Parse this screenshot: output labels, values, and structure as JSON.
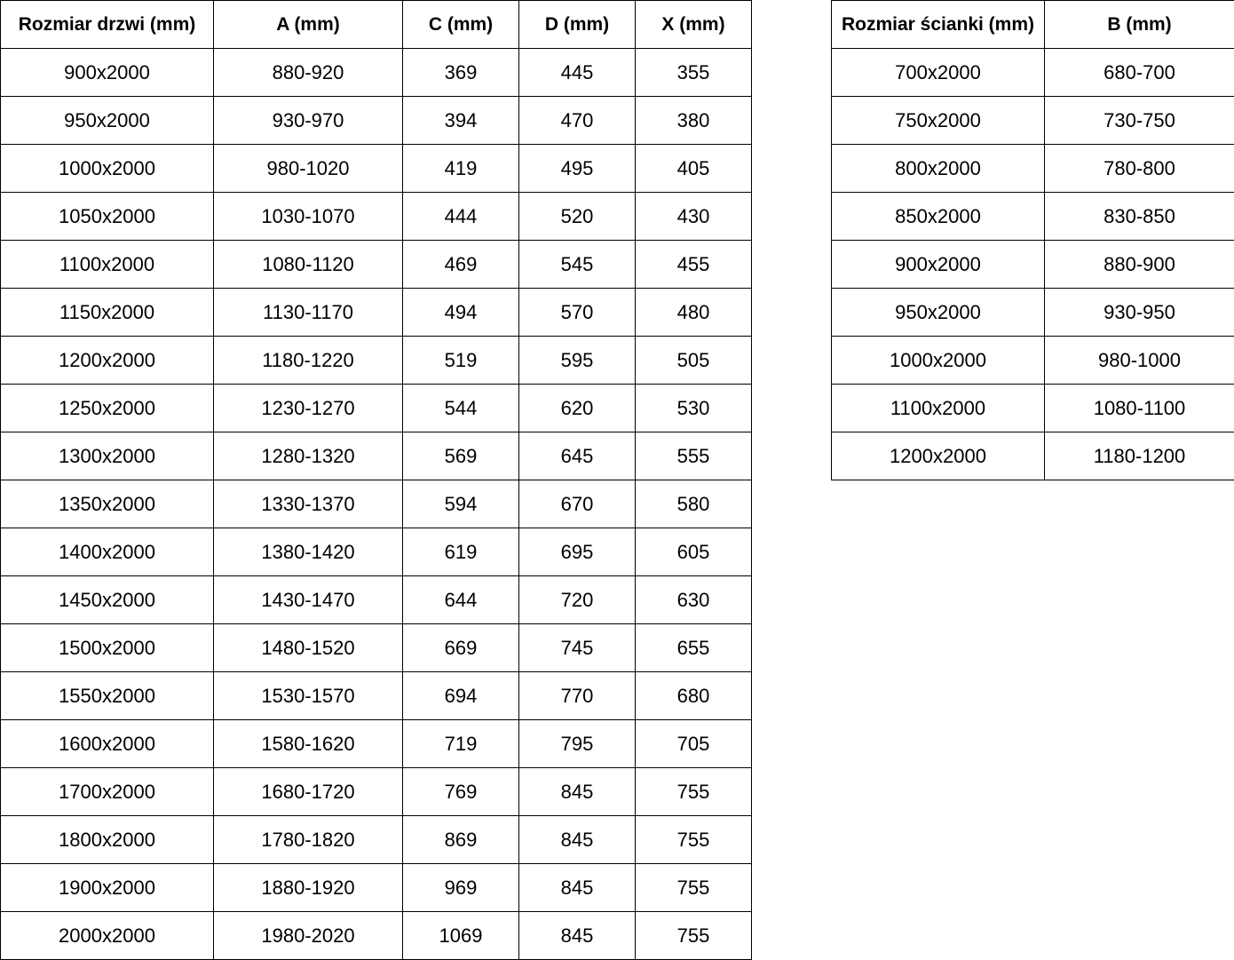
{
  "door_table": {
    "headers": [
      "Rozmiar drzwi (mm)",
      "A (mm)",
      "C (mm)",
      "D (mm)",
      "X (mm)"
    ],
    "rows": [
      [
        "900x2000",
        "880-920",
        "369",
        "445",
        "355"
      ],
      [
        "950x2000",
        "930-970",
        "394",
        "470",
        "380"
      ],
      [
        "1000x2000",
        "980-1020",
        "419",
        "495",
        "405"
      ],
      [
        "1050x2000",
        "1030-1070",
        "444",
        "520",
        "430"
      ],
      [
        "1100x2000",
        "1080-1120",
        "469",
        "545",
        "455"
      ],
      [
        "1150x2000",
        "1130-1170",
        "494",
        "570",
        "480"
      ],
      [
        "1200x2000",
        "1180-1220",
        "519",
        "595",
        "505"
      ],
      [
        "1250x2000",
        "1230-1270",
        "544",
        "620",
        "530"
      ],
      [
        "1300x2000",
        "1280-1320",
        "569",
        "645",
        "555"
      ],
      [
        "1350x2000",
        "1330-1370",
        "594",
        "670",
        "580"
      ],
      [
        "1400x2000",
        "1380-1420",
        "619",
        "695",
        "605"
      ],
      [
        "1450x2000",
        "1430-1470",
        "644",
        "720",
        "630"
      ],
      [
        "1500x2000",
        "1480-1520",
        "669",
        "745",
        "655"
      ],
      [
        "1550x2000",
        "1530-1570",
        "694",
        "770",
        "680"
      ],
      [
        "1600x2000",
        "1580-1620",
        "719",
        "795",
        "705"
      ],
      [
        "1700x2000",
        "1680-1720",
        "769",
        "845",
        "755"
      ],
      [
        "1800x2000",
        "1780-1820",
        "869",
        "845",
        "755"
      ],
      [
        "1900x2000",
        "1880-1920",
        "969",
        "845",
        "755"
      ],
      [
        "2000x2000",
        "1980-2020",
        "1069",
        "845",
        "755"
      ]
    ]
  },
  "wall_table": {
    "headers": [
      "Rozmiar ścianki (mm)",
      "B (mm)"
    ],
    "rows": [
      [
        "700x2000",
        "680-700"
      ],
      [
        "750x2000",
        "730-750"
      ],
      [
        "800x2000",
        "780-800"
      ],
      [
        "850x2000",
        "830-850"
      ],
      [
        "900x2000",
        "880-900"
      ],
      [
        "950x2000",
        "930-950"
      ],
      [
        "1000x2000",
        "980-1000"
      ],
      [
        "1100x2000",
        "1080-1100"
      ],
      [
        "1200x2000",
        "1180-1200"
      ]
    ]
  }
}
